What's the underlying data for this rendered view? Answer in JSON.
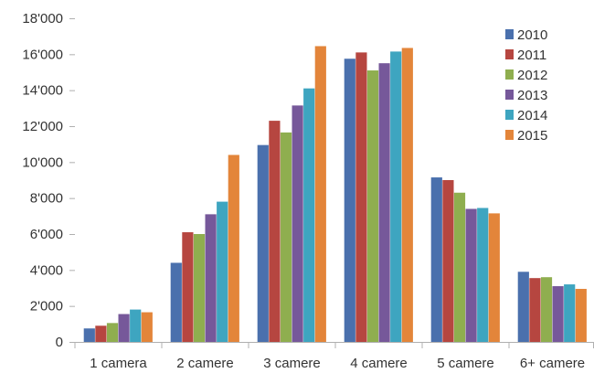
{
  "chart_data": {
    "type": "bar",
    "title": "",
    "xlabel": "",
    "ylabel": "",
    "categories": [
      "1 camera",
      "2 camere",
      "3 camere",
      "4 camere",
      "5 camere",
      "6+ camere"
    ],
    "ylim": [
      0,
      18000
    ],
    "yticks": [
      0,
      2000,
      4000,
      6000,
      8000,
      10000,
      12000,
      14000,
      16000,
      18000
    ],
    "ytick_labels": [
      "0",
      "2'000",
      "4'000",
      "6'000",
      "8'000",
      "10'000",
      "12'000",
      "14'000",
      "16'000",
      "18'000"
    ],
    "grid": false,
    "legend_position": "top-right",
    "series": [
      {
        "name": "2010",
        "color": "#4a70ad",
        "values": [
          750,
          4400,
          10950,
          15750,
          9150,
          3900
        ]
      },
      {
        "name": "2011",
        "color": "#b64640",
        "values": [
          900,
          6100,
          12300,
          16100,
          9000,
          3550
        ]
      },
      {
        "name": "2012",
        "color": "#8fae4f",
        "values": [
          1050,
          6000,
          11650,
          15100,
          8300,
          3600
        ]
      },
      {
        "name": "2013",
        "color": "#76589a",
        "values": [
          1550,
          7100,
          13150,
          15500,
          7400,
          3100
        ]
      },
      {
        "name": "2014",
        "color": "#3ea5c0",
        "values": [
          1800,
          7800,
          14100,
          16150,
          7450,
          3200
        ]
      },
      {
        "name": "2015",
        "color": "#e3853a",
        "values": [
          1650,
          10400,
          16450,
          16350,
          7150,
          2950
        ]
      }
    ]
  }
}
